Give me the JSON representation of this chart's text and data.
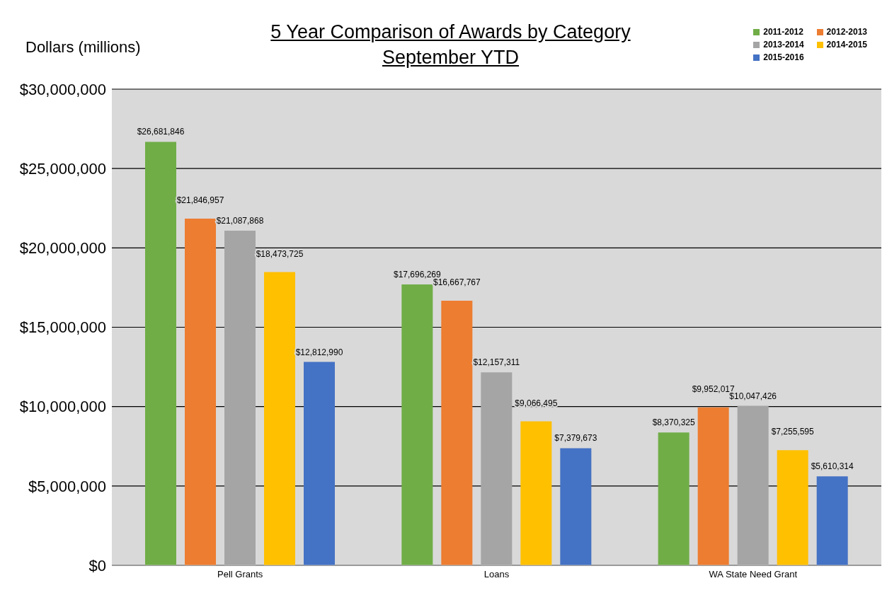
{
  "chart_data": {
    "type": "bar",
    "title": "5 Year Comparison of Awards by Category",
    "subtitle": "September YTD",
    "ylabel": "Dollars (millions)",
    "categories": [
      "Pell Grants",
      "Loans",
      "WA State Need Grant"
    ],
    "series": [
      {
        "name": "2011-2012",
        "color": "#70ad47",
        "values": [
          26681846,
          17696269,
          8370325
        ],
        "value_labels": [
          "$26,681,846",
          "$17,696,269",
          "$8,370,325"
        ]
      },
      {
        "name": "2012-2013",
        "color": "#ed7d31",
        "values": [
          21846957,
          16667767,
          9952017
        ],
        "value_labels": [
          "$21,846,957",
          "$16,667,767",
          "$9,952,017"
        ]
      },
      {
        "name": "2013-2014",
        "color": "#a5a5a5",
        "values": [
          21087868,
          12157311,
          10047426
        ],
        "value_labels": [
          "$21,087,868",
          "$12,157,311",
          "$10,047,426"
        ]
      },
      {
        "name": "2014-2015",
        "color": "#ffc000",
        "values": [
          18473725,
          9066495,
          7255595
        ],
        "value_labels": [
          "$18,473,725",
          "$9,066,495",
          "$7,255,595"
        ]
      },
      {
        "name": "2015-2016",
        "color": "#4472c4",
        "values": [
          12812990,
          7379673,
          5610314
        ],
        "value_labels": [
          "$12,812,990",
          "$7,379,673",
          "$5,610,314"
        ]
      }
    ],
    "ylim": [
      0,
      30000000
    ],
    "yticks": [
      {
        "value": 0,
        "label": "$0"
      },
      {
        "value": 5000000,
        "label": "$5,000,000"
      },
      {
        "value": 10000000,
        "label": "$10,000,000"
      },
      {
        "value": 15000000,
        "label": "$15,000,000"
      },
      {
        "value": 20000000,
        "label": "$20,000,000"
      },
      {
        "value": 25000000,
        "label": "$25,000,000"
      },
      {
        "value": 30000000,
        "label": "$30,000,000"
      }
    ],
    "grid": "y",
    "legend": "top right"
  }
}
